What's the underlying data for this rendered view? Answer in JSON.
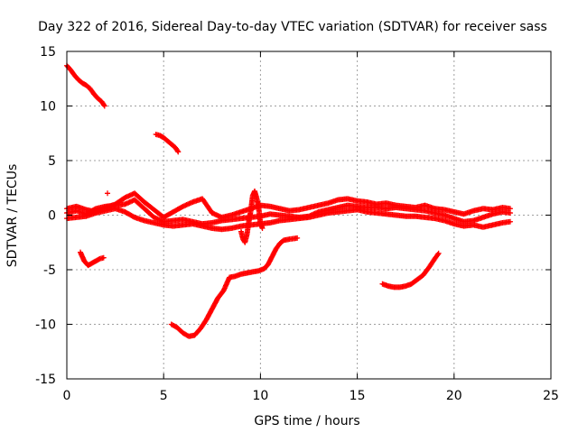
{
  "chart_data": {
    "type": "scatter",
    "title": "Day 322 of 2016, Sidereal Day-to-day VTEC variation (SDTVAR) for receiver sass",
    "xlabel": "GPS time / hours",
    "ylabel": "SDTVAR / TECUs",
    "xlim": [
      0,
      25
    ],
    "ylim": [
      -15,
      15
    ],
    "xticks": [
      0,
      5,
      10,
      15,
      20,
      25
    ],
    "yticks": [
      -15,
      -10,
      -5,
      0,
      5,
      10,
      15
    ],
    "grid": true,
    "marker": "plus",
    "color": "#ff0000",
    "series": [
      {
        "name": "arc-high-left",
        "x": [
          0.0,
          0.2,
          0.4,
          0.6,
          0.8,
          1.0,
          1.2,
          1.4,
          1.6,
          1.8,
          1.95
        ],
        "y": [
          13.7,
          13.3,
          12.8,
          12.4,
          12.1,
          11.9,
          11.6,
          11.1,
          10.7,
          10.4,
          10.0
        ]
      },
      {
        "name": "arc-high-mid",
        "x": [
          4.6,
          4.8,
          5.0,
          5.2,
          5.4,
          5.6,
          5.75
        ],
        "y": [
          7.4,
          7.3,
          7.1,
          6.8,
          6.5,
          6.2,
          5.8
        ]
      },
      {
        "name": "arc-left-low",
        "x": [
          0.7,
          0.9,
          1.1,
          1.3,
          1.5,
          1.7,
          1.9
        ],
        "y": [
          -3.4,
          -4.2,
          -4.6,
          -4.4,
          -4.2,
          -4.0,
          -3.9
        ]
      },
      {
        "name": "arc-mid-low",
        "x": [
          5.4,
          5.7,
          6.0,
          6.3,
          6.6,
          6.9,
          7.2,
          7.5,
          7.8,
          8.1,
          8.4,
          8.7,
          9.0,
          9.3,
          9.6,
          9.9,
          10.2,
          10.4,
          10.6,
          10.8,
          11.0,
          11.2,
          11.5,
          11.9
        ],
        "y": [
          -10.0,
          -10.3,
          -10.8,
          -11.1,
          -11.0,
          -10.4,
          -9.6,
          -8.6,
          -7.6,
          -6.9,
          -5.7,
          -5.6,
          -5.4,
          -5.3,
          -5.2,
          -5.1,
          -4.9,
          -4.5,
          -3.8,
          -3.1,
          -2.6,
          -2.3,
          -2.2,
          -2.1
        ]
      },
      {
        "name": "arc-right-low",
        "x": [
          16.3,
          16.6,
          16.9,
          17.2,
          17.5,
          17.8,
          18.1,
          18.4,
          18.7,
          19.0,
          19.2
        ],
        "y": [
          -6.3,
          -6.5,
          -6.6,
          -6.6,
          -6.5,
          -6.3,
          -5.9,
          -5.5,
          -4.8,
          -4.0,
          -3.5
        ]
      },
      {
        "name": "band-baseline",
        "x": [
          0.0,
          0.5,
          1.0,
          1.5,
          2.0,
          2.5,
          3.0,
          3.5,
          4.0,
          4.5,
          5.0,
          5.5,
          6.0,
          6.5,
          7.0,
          7.5,
          8.0,
          8.5,
          9.0,
          9.5,
          10.0,
          10.5,
          11.0,
          11.5,
          12.0,
          12.5,
          13.0,
          13.5,
          14.0,
          14.5,
          15.0,
          15.5,
          16.0,
          16.5,
          17.0,
          17.5,
          18.0,
          18.5,
          19.0,
          19.5,
          20.0,
          20.5,
          21.0,
          21.5,
          22.0,
          22.5,
          22.9
        ],
        "y": [
          0.2,
          0.4,
          0.1,
          0.6,
          0.8,
          0.9,
          1.0,
          1.4,
          0.6,
          -0.2,
          -0.6,
          -0.5,
          -0.4,
          -0.6,
          -0.8,
          -0.7,
          -0.5,
          -0.4,
          -0.3,
          -0.2,
          -0.1,
          0.1,
          0.0,
          -0.1,
          -0.2,
          -0.1,
          0.3,
          0.5,
          0.7,
          0.9,
          0.8,
          0.7,
          0.7,
          0.6,
          0.7,
          0.6,
          0.5,
          0.4,
          0.2,
          0.0,
          -0.3,
          -0.6,
          -0.5,
          -0.2,
          0.1,
          0.3,
          0.2
        ]
      },
      {
        "name": "band-lower",
        "x": [
          0.0,
          0.5,
          1.0,
          1.5,
          2.0,
          2.5,
          3.0,
          3.5,
          4.0,
          4.5,
          5.0,
          5.5,
          6.0,
          6.5,
          7.0,
          7.5,
          8.0,
          8.5,
          9.0,
          9.5,
          10.0,
          10.5,
          11.0,
          11.5,
          12.0,
          12.5,
          13.0,
          13.5,
          14.0,
          14.5,
          15.0,
          15.5,
          16.0,
          16.5,
          17.0,
          17.5,
          18.0,
          18.5,
          19.0,
          19.5,
          20.0,
          20.5,
          21.0,
          21.5,
          22.0,
          22.5,
          22.9
        ],
        "y": [
          -0.3,
          -0.2,
          -0.1,
          0.2,
          0.4,
          0.6,
          0.3,
          -0.2,
          -0.5,
          -0.7,
          -0.9,
          -1.0,
          -0.9,
          -0.8,
          -1.0,
          -1.2,
          -1.3,
          -1.2,
          -1.0,
          -0.9,
          -0.8,
          -0.7,
          -0.5,
          -0.4,
          -0.3,
          -0.2,
          0.0,
          0.2,
          0.3,
          0.4,
          0.5,
          0.3,
          0.2,
          0.1,
          0.0,
          -0.1,
          -0.1,
          -0.2,
          -0.3,
          -0.5,
          -0.8,
          -1.0,
          -0.9,
          -1.1,
          -0.9,
          -0.7,
          -0.6
        ]
      },
      {
        "name": "band-upper",
        "x": [
          0.0,
          0.5,
          1.0,
          1.5,
          2.0,
          2.5,
          3.0,
          3.5,
          4.0,
          4.5,
          5.0,
          5.5,
          6.0,
          6.5,
          7.0,
          7.5,
          8.0,
          8.5,
          9.0,
          9.5,
          10.0,
          10.5,
          11.0,
          11.5,
          12.0,
          12.5,
          13.0,
          13.5,
          14.0,
          14.5,
          15.0,
          15.5,
          16.0,
          16.5,
          17.0,
          17.5,
          18.0,
          18.5,
          19.0,
          19.5,
          20.0,
          20.5,
          21.0,
          21.5,
          22.0,
          22.5,
          22.9
        ],
        "y": [
          0.6,
          0.8,
          0.5,
          0.3,
          0.7,
          1.0,
          1.6,
          2.0,
          1.2,
          0.5,
          -0.2,
          0.3,
          0.8,
          1.2,
          1.5,
          0.2,
          -0.2,
          0.0,
          0.3,
          0.6,
          0.9,
          0.8,
          0.6,
          0.4,
          0.5,
          0.7,
          0.9,
          1.1,
          1.4,
          1.5,
          1.3,
          1.2,
          1.0,
          1.1,
          0.9,
          0.8,
          0.7,
          0.9,
          0.6,
          0.5,
          0.3,
          0.1,
          0.4,
          0.6,
          0.5,
          0.7,
          0.6
        ]
      },
      {
        "name": "spike-9-10",
        "x": [
          9.0,
          9.1,
          9.2,
          9.3,
          9.4,
          9.5,
          9.6,
          9.7,
          9.8,
          9.9,
          10.0,
          10.1
        ],
        "y": [
          -1.5,
          -2.2,
          -2.5,
          -1.8,
          -0.6,
          0.4,
          1.8,
          2.2,
          1.6,
          0.8,
          -0.8,
          -1.2
        ]
      },
      {
        "name": "isolated",
        "x": [
          2.1
        ],
        "y": [
          2.0
        ]
      }
    ]
  }
}
